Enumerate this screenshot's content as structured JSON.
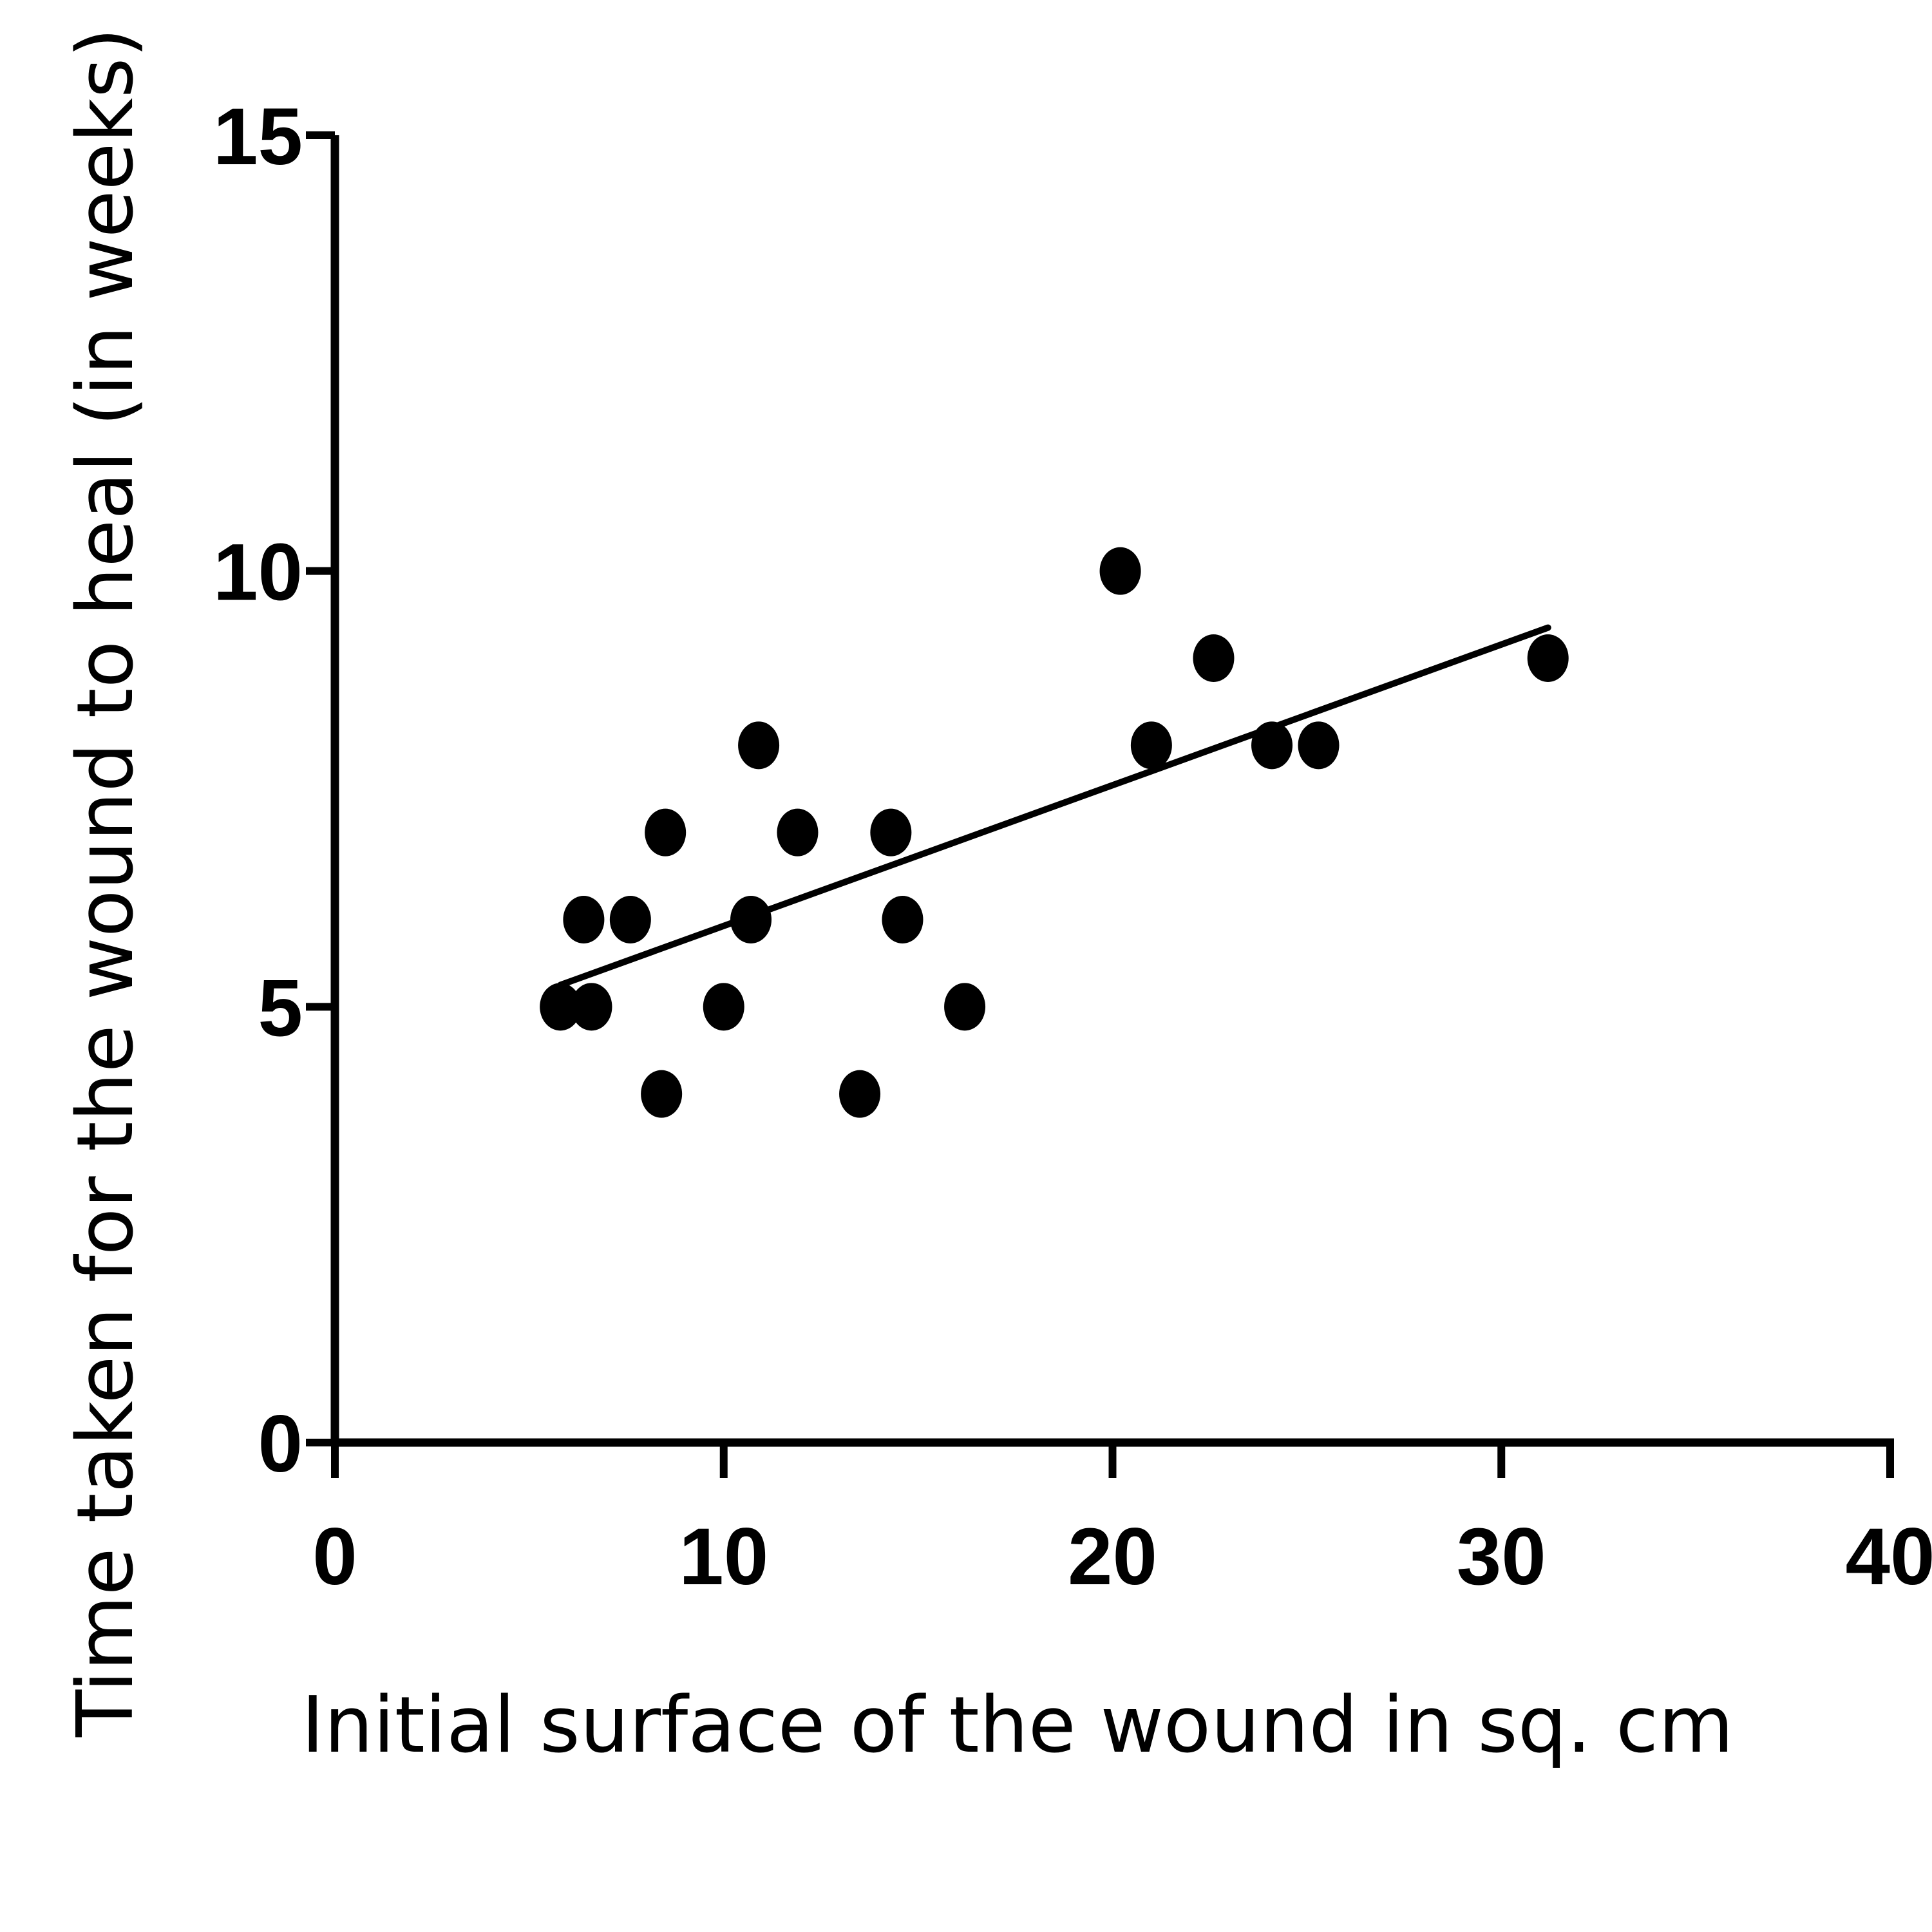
{
  "chart_data": {
    "type": "scatter",
    "title": "",
    "xlabel": "Initial surface of the wound in sq. cm",
    "ylabel": "Time taken for the wound to heal (in weeks)",
    "xlim": [
      0,
      40
    ],
    "ylim": [
      0,
      15
    ],
    "x_ticks": [
      "0",
      "10",
      "20",
      "30",
      "40"
    ],
    "y_ticks": [
      "0",
      "5",
      "10",
      "15"
    ],
    "grid": false,
    "colors": {
      "points": "#000000",
      "axes": "#000000",
      "trendline": "#000000"
    },
    "series": [
      {
        "points": [
          {
            "x": 5.8,
            "y": 5
          },
          {
            "x": 6.6,
            "y": 5
          },
          {
            "x": 6.4,
            "y": 6
          },
          {
            "x": 7.6,
            "y": 6
          },
          {
            "x": 8.5,
            "y": 7
          },
          {
            "x": 8.4,
            "y": 4
          },
          {
            "x": 10.0,
            "y": 5
          },
          {
            "x": 10.7,
            "y": 6
          },
          {
            "x": 10.9,
            "y": 8
          },
          {
            "x": 11.9,
            "y": 7
          },
          {
            "x": 13.5,
            "y": 4
          },
          {
            "x": 14.3,
            "y": 7
          },
          {
            "x": 14.6,
            "y": 6
          },
          {
            "x": 16.2,
            "y": 5
          },
          {
            "x": 20.2,
            "y": 10
          },
          {
            "x": 21.0,
            "y": 8
          },
          {
            "x": 22.6,
            "y": 9
          },
          {
            "x": 24.1,
            "y": 8
          },
          {
            "x": 25.3,
            "y": 8
          },
          {
            "x": 31.2,
            "y": 9
          }
        ]
      }
    ],
    "trendline": {
      "x": [
        5.8,
        31.2
      ],
      "y": [
        5.25,
        9.35
      ]
    }
  }
}
